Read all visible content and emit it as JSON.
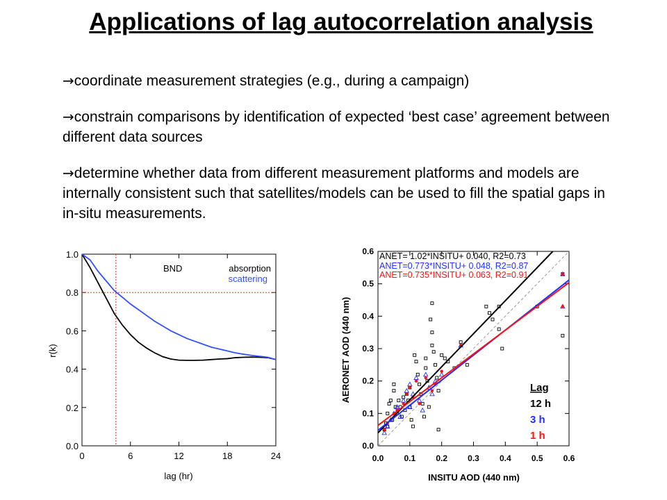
{
  "slide": {
    "title": "Applications of lag autocorrelation analysis",
    "bullets": [
      "coordinate measurement strategies (e.g., during a campaign)",
      "constrain comparisons by identification of expected ‘best case’ agreement between different data sources",
      "determine whether data from different measurement platforms and models are internally consistent such that satellites/models can be used to fill the spatial gaps in in-situ measurements."
    ],
    "bullet_marker": "→"
  },
  "chart_data": [
    {
      "type": "line",
      "title": "BND",
      "xlabel": "lag (hr)",
      "ylabel": "r(k)",
      "xlim": [
        0,
        24
      ],
      "ylim": [
        0,
        1
      ],
      "xticks": [
        0,
        6,
        12,
        18,
        24
      ],
      "yticks": [
        0.0,
        0.2,
        0.4,
        0.6,
        0.8,
        1.0
      ],
      "ytick_labels": [
        "0.0",
        "0.2",
        "0.4",
        "0.6",
        "0.8",
        "1.0"
      ],
      "legend_placement": "top-right",
      "series": [
        {
          "name": "absorption",
          "color": "#000000",
          "x": [
            0,
            1,
            2,
            3,
            4,
            5,
            6,
            7,
            8,
            9,
            10,
            11,
            12,
            13,
            14,
            15,
            16,
            17,
            18,
            19,
            20,
            21,
            22,
            23,
            24
          ],
          "y": [
            1.0,
            0.93,
            0.85,
            0.77,
            0.69,
            0.63,
            0.58,
            0.54,
            0.51,
            0.485,
            0.465,
            0.453,
            0.447,
            0.446,
            0.446,
            0.447,
            0.45,
            0.453,
            0.455,
            0.46,
            0.462,
            0.463,
            0.462,
            0.46,
            0.45
          ]
        },
        {
          "name": "scattering",
          "color": "#3050ff",
          "x": [
            0,
            1,
            2,
            3,
            4,
            5,
            6,
            7,
            8,
            9,
            10,
            11,
            12,
            13,
            14,
            15,
            16,
            17,
            18,
            19,
            20,
            21,
            22,
            23,
            24
          ],
          "y": [
            1.0,
            0.97,
            0.91,
            0.86,
            0.81,
            0.775,
            0.74,
            0.71,
            0.68,
            0.65,
            0.625,
            0.6,
            0.58,
            0.56,
            0.545,
            0.53,
            0.515,
            0.505,
            0.495,
            0.485,
            0.478,
            0.472,
            0.467,
            0.462,
            0.45
          ]
        }
      ],
      "reference_lines": {
        "x": 4.2,
        "y": 0.8,
        "color": "#ff2020"
      }
    },
    {
      "type": "scatter",
      "xlabel": "INSITU AOD (440 nm)",
      "ylabel": "AERONET AOD (440 nm)",
      "xlim": [
        0,
        0.6
      ],
      "ylim": [
        0,
        0.6
      ],
      "xticks": [
        0.0,
        0.1,
        0.2,
        0.3,
        0.4,
        0.5,
        0.6
      ],
      "yticks": [
        0.0,
        0.1,
        0.2,
        0.3,
        0.4,
        0.5,
        0.6
      ],
      "tick_labels": [
        "0.0",
        "0.1",
        "0.2",
        "0.3",
        "0.4",
        "0.5",
        "0.6"
      ],
      "annotations": [
        {
          "text": "ANET= 1.02*INSITU+ 0.040, R2=0.73",
          "color": "#000000"
        },
        {
          "text": "ANET=0.773*INSITU+ 0.048, R2=0.87",
          "color": "#2030ff"
        },
        {
          "text": "ANET=0.735*INSITU+ 0.063, R2=0.91",
          "color": "#ff1010"
        }
      ],
      "legend_title": "Lag",
      "legend_placement": "bottom-right",
      "series": [
        {
          "name": "12 h",
          "color": "#000000",
          "marker": "square",
          "slope": 1.02,
          "intercept": 0.04,
          "points": [
            [
              0.02,
              0.05
            ],
            [
              0.025,
              0.07
            ],
            [
              0.03,
              0.06
            ],
            [
              0.03,
              0.1
            ],
            [
              0.035,
              0.13
            ],
            [
              0.04,
              0.14
            ],
            [
              0.045,
              0.08
            ],
            [
              0.05,
              0.19
            ],
            [
              0.05,
              0.17
            ],
            [
              0.055,
              0.12
            ],
            [
              0.06,
              0.1
            ],
            [
              0.065,
              0.14
            ],
            [
              0.07,
              0.12
            ],
            [
              0.075,
              0.09
            ],
            [
              0.08,
              0.15
            ],
            [
              0.085,
              0.11
            ],
            [
              0.09,
              0.16
            ],
            [
              0.095,
              0.14
            ],
            [
              0.1,
              0.18
            ],
            [
              0.1,
              0.12
            ],
            [
              0.105,
              0.08
            ],
            [
              0.11,
              0.06
            ],
            [
              0.115,
              0.28
            ],
            [
              0.12,
              0.26
            ],
            [
              0.125,
              0.22
            ],
            [
              0.13,
              0.19
            ],
            [
              0.135,
              0.16
            ],
            [
              0.14,
              0.13
            ],
            [
              0.145,
              0.09
            ],
            [
              0.15,
              0.27
            ],
            [
              0.15,
              0.24
            ],
            [
              0.155,
              0.2
            ],
            [
              0.16,
              0.12
            ],
            [
              0.165,
              0.39
            ],
            [
              0.17,
              0.44
            ],
            [
              0.17,
              0.35
            ],
            [
              0.17,
              0.31
            ],
            [
              0.175,
              0.29
            ],
            [
              0.18,
              0.25
            ],
            [
              0.185,
              0.21
            ],
            [
              0.19,
              0.17
            ],
            [
              0.19,
              0.05
            ],
            [
              0.2,
              0.28
            ],
            [
              0.21,
              0.27
            ],
            [
              0.22,
              0.26
            ],
            [
              0.24,
              0.24
            ],
            [
              0.26,
              0.32
            ],
            [
              0.28,
              0.25
            ],
            [
              0.34,
              0.43
            ],
            [
              0.35,
              0.41
            ],
            [
              0.36,
              0.39
            ],
            [
              0.38,
              0.43
            ],
            [
              0.38,
              0.36
            ],
            [
              0.39,
              0.3
            ],
            [
              0.5,
              0.43
            ],
            [
              0.58,
              0.34
            ],
            [
              0.58,
              0.53
            ]
          ]
        },
        {
          "name": "3 h",
          "color": "#2030ff",
          "marker": "triangle",
          "slope": 0.773,
          "intercept": 0.048,
          "points": [
            [
              0.02,
              0.04
            ],
            [
              0.03,
              0.06
            ],
            [
              0.04,
              0.08
            ],
            [
              0.05,
              0.1
            ],
            [
              0.06,
              0.12
            ],
            [
              0.07,
              0.09
            ],
            [
              0.08,
              0.14
            ],
            [
              0.09,
              0.17
            ],
            [
              0.1,
              0.19
            ],
            [
              0.1,
              0.12
            ],
            [
              0.11,
              0.16
            ],
            [
              0.12,
              0.21
            ],
            [
              0.13,
              0.14
            ],
            [
              0.14,
              0.11
            ],
            [
              0.15,
              0.22
            ],
            [
              0.16,
              0.18
            ],
            [
              0.17,
              0.16
            ],
            [
              0.18,
              0.2
            ],
            [
              0.2,
              0.22
            ],
            [
              0.26,
              0.31
            ],
            [
              0.58,
              0.53
            ],
            [
              0.58,
              0.43
            ]
          ]
        },
        {
          "name": "1 h",
          "color": "#ff1010",
          "marker": "circle",
          "slope": 0.735,
          "intercept": 0.063,
          "points": [
            [
              0.02,
              0.05
            ],
            [
              0.03,
              0.07
            ],
            [
              0.05,
              0.1
            ],
            [
              0.06,
              0.11
            ],
            [
              0.08,
              0.13
            ],
            [
              0.09,
              0.16
            ],
            [
              0.1,
              0.18
            ],
            [
              0.11,
              0.15
            ],
            [
              0.12,
              0.2
            ],
            [
              0.13,
              0.13
            ],
            [
              0.15,
              0.21
            ],
            [
              0.17,
              0.17
            ],
            [
              0.18,
              0.19
            ],
            [
              0.2,
              0.23
            ],
            [
              0.26,
              0.31
            ],
            [
              0.58,
              0.53
            ],
            [
              0.58,
              0.43
            ]
          ]
        }
      ],
      "identity_line": {
        "color": "#999999",
        "dashed": true
      }
    }
  ]
}
